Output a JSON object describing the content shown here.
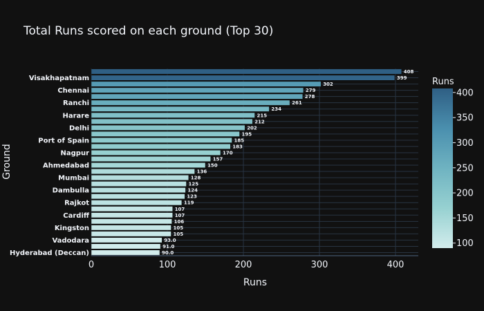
{
  "chart_data": {
    "type": "bar",
    "orientation": "horizontal",
    "title": "Total Runs scored on each ground (Top 30)",
    "xlabel": "Runs",
    "ylabel": "Ground",
    "xlim": [
      0,
      430
    ],
    "x_ticks": [
      0,
      100,
      200,
      300,
      400
    ],
    "values": [
      408,
      399,
      302,
      279,
      278,
      261,
      234,
      215,
      212,
      202,
      195,
      185,
      183,
      170,
      157,
      150,
      136,
      128,
      125,
      124,
      123,
      119,
      107,
      107,
      106,
      105,
      105,
      93.0,
      91.0,
      90.0
    ],
    "data_labels": [
      "408",
      "399",
      "302",
      "279",
      "278",
      "261",
      "234",
      "215",
      "212",
      "202",
      "195",
      "185",
      "183",
      "170",
      "157",
      "150",
      "136",
      "128",
      "125",
      "124",
      "123",
      "119",
      "107",
      "107",
      "106",
      "105",
      "105",
      "93.0",
      "91.0",
      "90.0"
    ],
    "categories": [
      "",
      "Visakhapatnam",
      "",
      "Chennai",
      "",
      "Ranchi",
      "",
      "Harare",
      "",
      "Delhi",
      "",
      "Port of Spain",
      "",
      "Nagpur",
      "",
      "Ahmedabad",
      "",
      "Mumbai",
      "",
      "Dambulla",
      "",
      "Rajkot",
      "",
      "Cardiff",
      "",
      "Kingston",
      "",
      "Vadodara",
      "",
      "Hyderabad (Deccan)"
    ],
    "colorbar": {
      "title": "Runs",
      "range": [
        90,
        408
      ],
      "ticks": [
        100,
        150,
        200,
        250,
        300,
        350,
        400
      ],
      "colors": [
        "#d2ecec",
        "#97d1d1",
        "#6fb3c1",
        "#4a8fae",
        "#2f5f84"
      ]
    },
    "grid": true,
    "legend": "none"
  }
}
